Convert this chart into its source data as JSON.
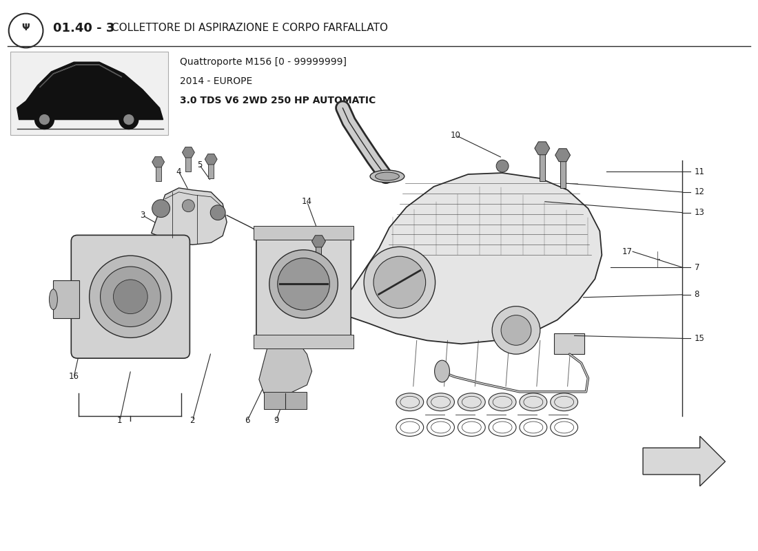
{
  "title_number": "01.40 - 3",
  "title_text": "COLLETTORE DI ASPIRAZIONE E CORPO FARFALLATO",
  "subtitle_line1": "Quattroporte M156 [0 - 99999999]",
  "subtitle_line2": "2014 - EUROPE",
  "subtitle_line3": "3.0 TDS V6 2WD 250 HP AUTOMATIC",
  "bg_color": "#ffffff",
  "text_color": "#1a1a1a",
  "line_color": "#2a2a2a",
  "fig_width": 11.0,
  "fig_height": 8.0
}
